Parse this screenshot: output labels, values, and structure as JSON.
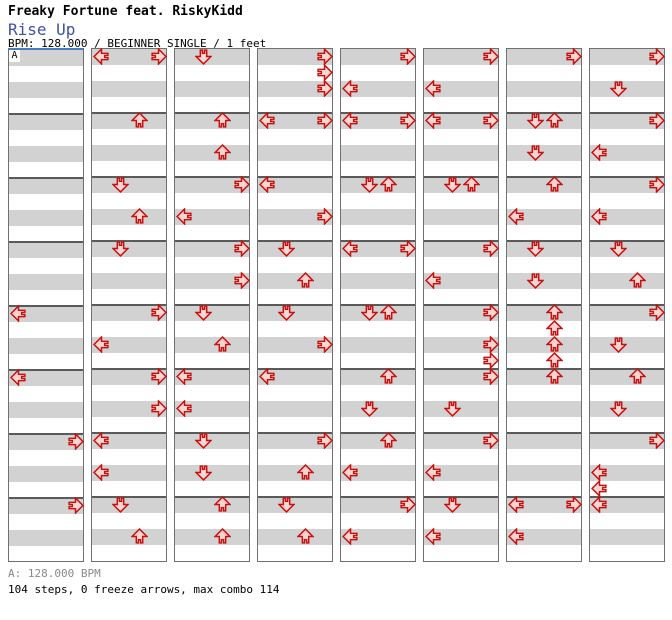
{
  "header": {
    "title": "Freaky Fortune feat. RiskyKidd",
    "song": "Rise Up",
    "meta": "BPM: 128.000 / BEGINNER SINGLE / 1 feet"
  },
  "footer": {
    "section_bpm": "A: 128.000 BPM",
    "stats": "104 steps, 0 freeze arrows, max combo 114"
  },
  "chart_data": {
    "type": "step-chart",
    "game": "dance-single",
    "difficulty": "BEGINNER",
    "feet": 1,
    "bpm": "128.000",
    "bpm_marker": {
      "label": "A",
      "bpm": "128.000"
    },
    "lanes": [
      "left",
      "down",
      "up",
      "right"
    ],
    "beats_per_measure": 4,
    "measures_per_panel": 8,
    "panel_count": 8,
    "totals": {
      "steps": 104,
      "freeze_arrows": 0,
      "max_combo": 114,
      "arrows": 114,
      "jumps": 10
    },
    "colors": {
      "arrow_fill": "#f9d6d2",
      "arrow_stroke": "#c9100f",
      "stripe_gray": "#d2d2d2",
      "measure_line": "#5a5a5a",
      "panel_border": "#707070",
      "marker_line": "#4a7ac2",
      "song_title_blue": "#3f51a3",
      "footer_gray": "#888888"
    },
    "note_format": "beat(0-3) + lane letter L/D/U/R",
    "panels": [
      [
        [],
        [],
        [],
        [],
        [
          "0L"
        ],
        [
          "0L"
        ],
        [
          "0R"
        ],
        [
          "0R"
        ]
      ],
      [
        [
          "0L",
          "0R"
        ],
        [
          "0U"
        ],
        [
          "0D",
          "2U"
        ],
        [
          "0D"
        ],
        [
          "0R",
          "2L"
        ],
        [
          "0R",
          "2R"
        ],
        [
          "0L",
          "2L"
        ],
        [
          "0D",
          "2U"
        ]
      ],
      [
        [
          "0D"
        ],
        [
          "0U",
          "2U"
        ],
        [
          "0R",
          "2L"
        ],
        [
          "0R",
          "2R"
        ],
        [
          "0D",
          "2U"
        ],
        [
          "0L",
          "2L"
        ],
        [
          "0D",
          "2D"
        ],
        [
          "0U",
          "2U"
        ]
      ],
      [
        [
          "0R",
          "1R",
          "2R"
        ],
        [
          "0L",
          "0R"
        ],
        [
          "0L",
          "2R"
        ],
        [
          "0D",
          "2U"
        ],
        [
          "0D",
          "2R"
        ],
        [
          "0L"
        ],
        [
          "0R",
          "2U"
        ],
        [
          "0D",
          "2U"
        ]
      ],
      [
        [
          "0R",
          "2L"
        ],
        [
          "0L",
          "0R"
        ],
        [
          "0D",
          "0U"
        ],
        [
          "0L",
          "0R"
        ],
        [
          "0D",
          "0U"
        ],
        [
          "0U",
          "2D"
        ],
        [
          "0U",
          "2L"
        ],
        [
          "0R",
          "2L"
        ]
      ],
      [
        [
          "0R",
          "2L"
        ],
        [
          "0L",
          "0R"
        ],
        [
          "0D",
          "0U"
        ],
        [
          "0R",
          "2L"
        ],
        [
          "0R",
          "2R",
          "3R"
        ],
        [
          "0R",
          "2D"
        ],
        [
          "0R",
          "2L"
        ],
        [
          "0D",
          "2L"
        ]
      ],
      [
        [
          "0R"
        ],
        [
          "0D",
          "0U",
          "2D"
        ],
        [
          "0U",
          "2L"
        ],
        [
          "0D",
          "2D"
        ],
        [
          "0U",
          "1U",
          "2U",
          "3U"
        ],
        [
          "0U"
        ],
        [],
        [
          "0L",
          "0R",
          "2L"
        ]
      ],
      [
        [
          "0R",
          "2D"
        ],
        [
          "0R",
          "2L"
        ],
        [
          "0R",
          "2L"
        ],
        [
          "0D",
          "2U"
        ],
        [
          "0R",
          "2D"
        ],
        [
          "0U",
          "2D"
        ],
        [
          "0R",
          "2L",
          "3L"
        ],
        [
          "0L"
        ]
      ]
    ]
  }
}
